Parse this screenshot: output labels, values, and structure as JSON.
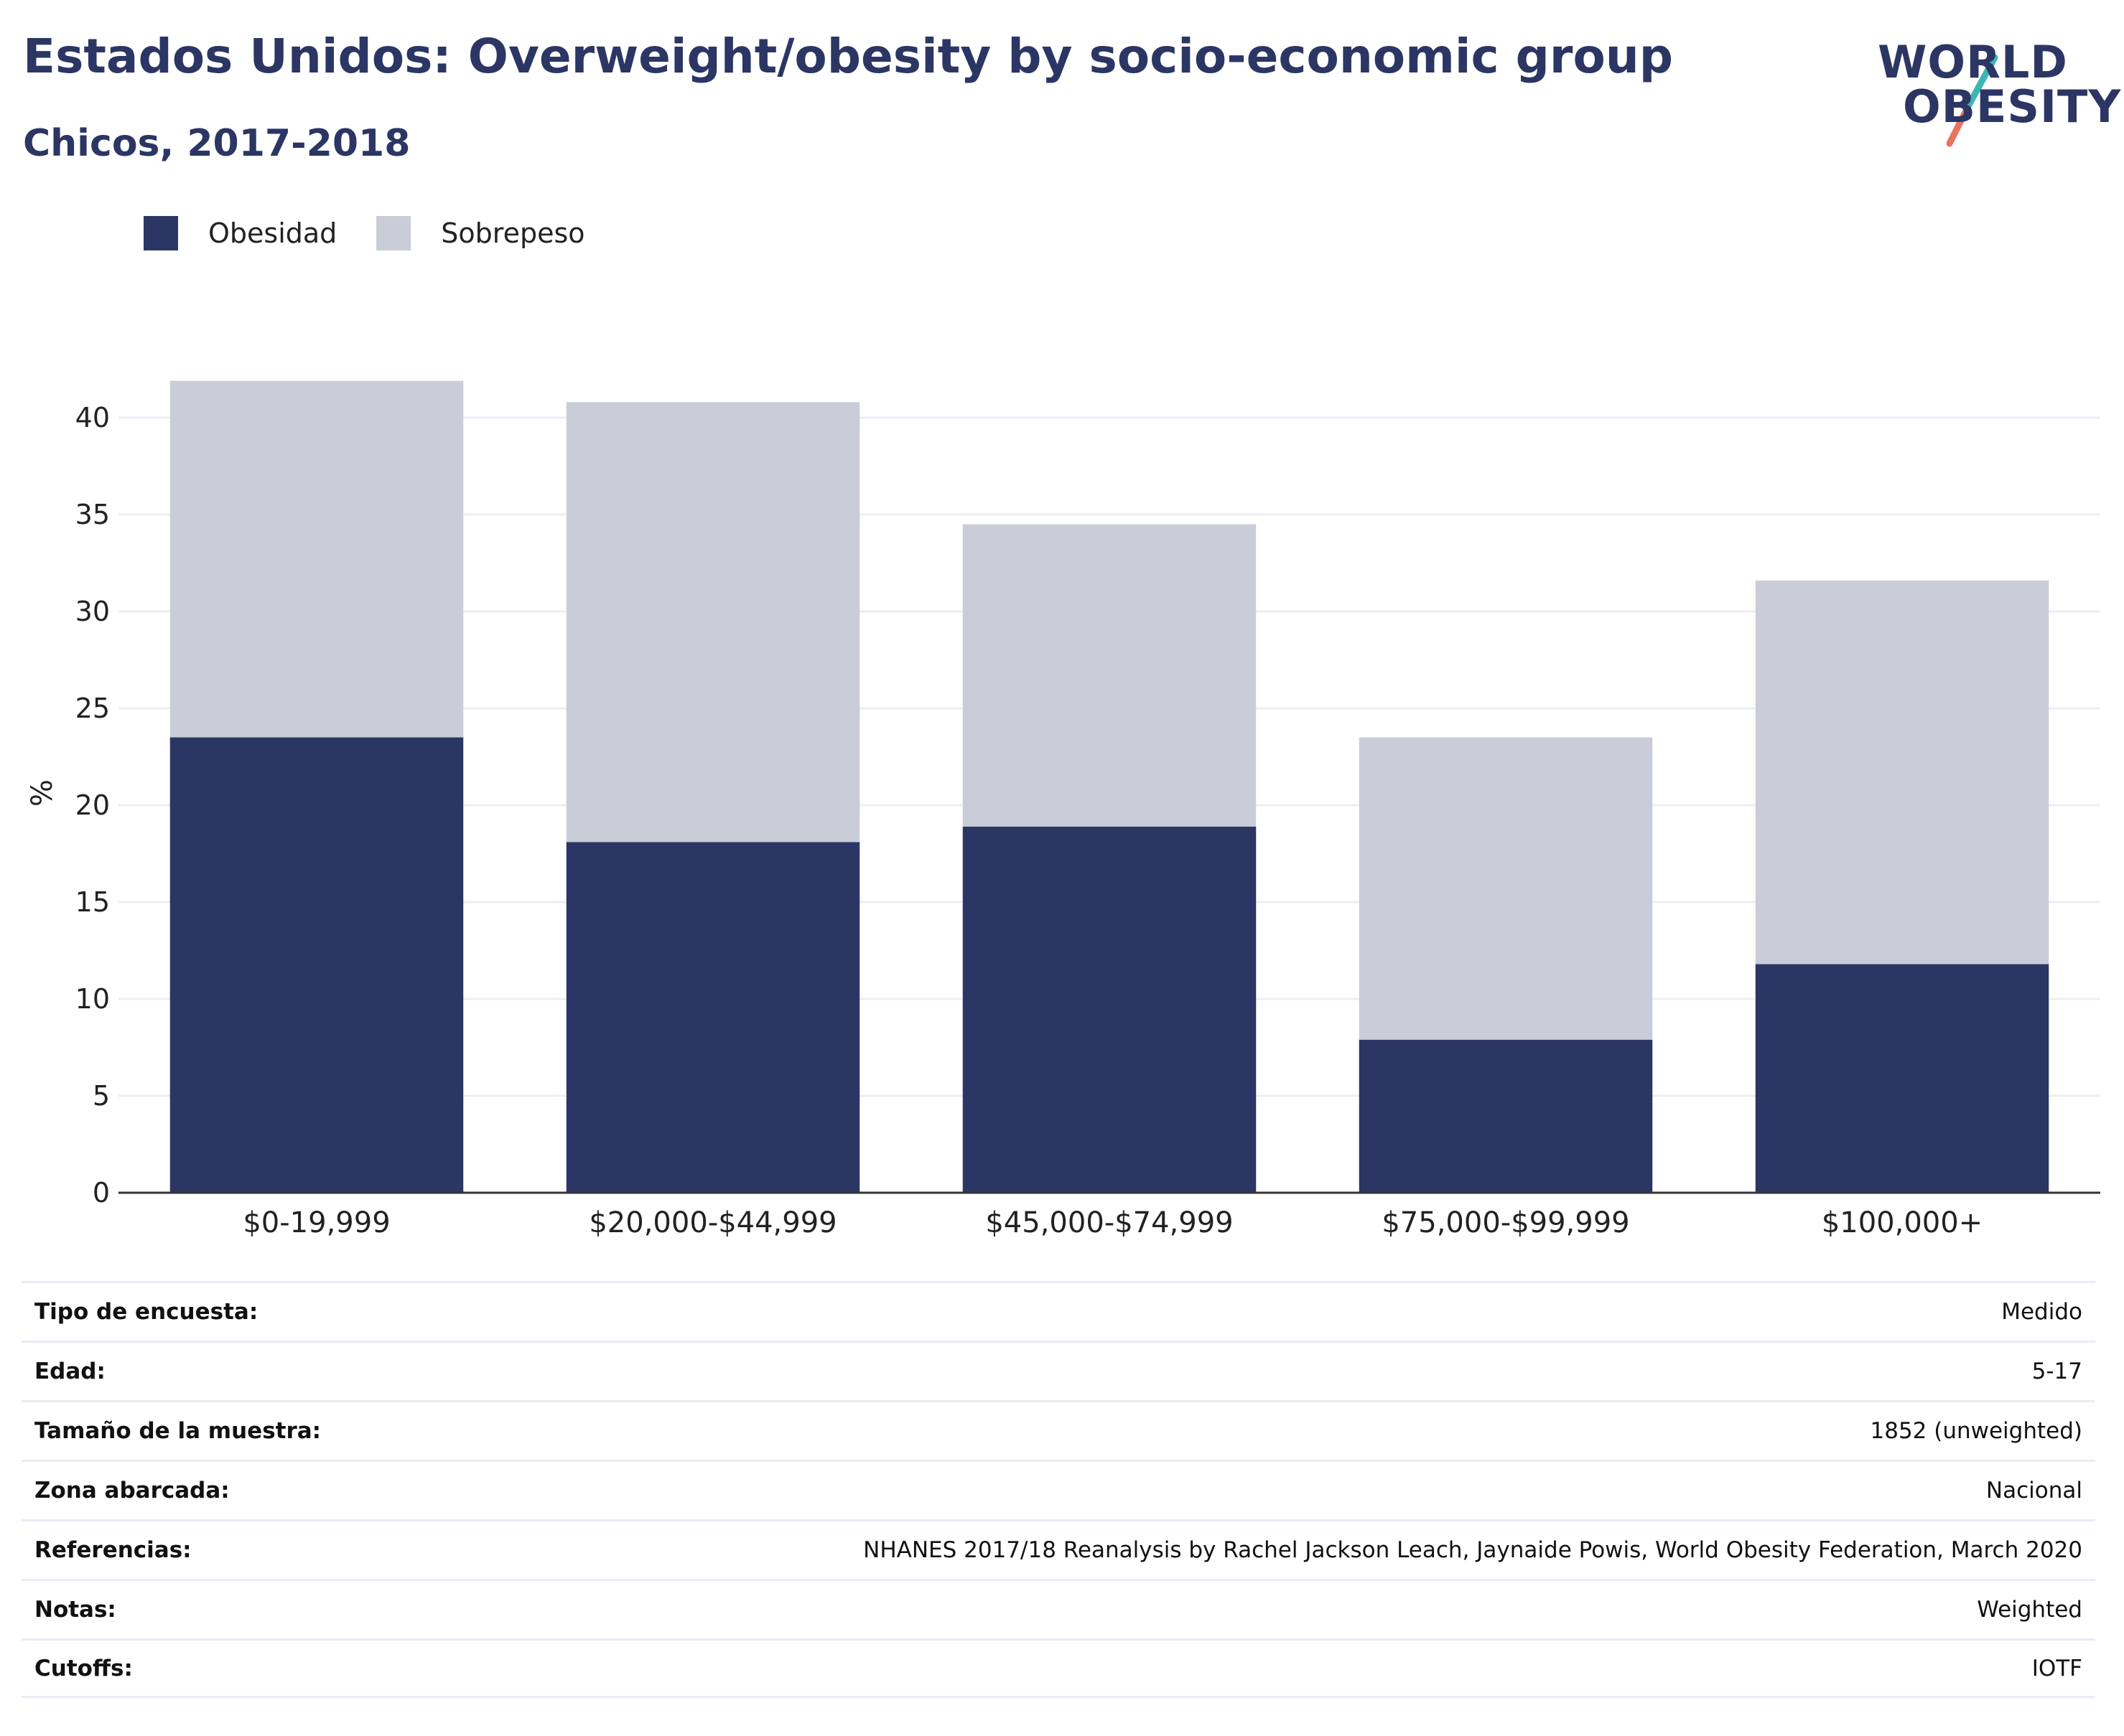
{
  "header": {
    "title": "Estados Unidos: Overweight/obesity by socio-economic group",
    "subtitle": "Chicos, 2017-2018"
  },
  "logo": {
    "line1": "WORLD",
    "line2": "OBESITY",
    "accent_teal": "#3ab7b5",
    "accent_coral": "#e8735f"
  },
  "legend": [
    {
      "label": "Obesidad",
      "color": "#2b3664"
    },
    {
      "label": "Sobrepeso",
      "color": "#cacdd8"
    }
  ],
  "chart_data": {
    "type": "bar",
    "stacked": true,
    "categories": [
      "$0-19,999",
      "$20,000-$44,999",
      "$45,000-$74,999",
      "$75,000-$99,999",
      "$100,000+"
    ],
    "series": [
      {
        "name": "Obesidad",
        "values": [
          23.5,
          18.1,
          18.9,
          7.9,
          11.8
        ],
        "color": "#2b3664"
      },
      {
        "name": "Sobrepeso",
        "values": [
          18.4,
          22.7,
          15.6,
          15.6,
          19.8
        ],
        "color": "#cacdd8"
      }
    ],
    "ylabel": "%",
    "ylim": [
      0,
      42
    ],
    "yticks": [
      0,
      5,
      10,
      15,
      20,
      25,
      30,
      35,
      40
    ],
    "grid": true,
    "legend_position": "top-left"
  },
  "info_table": [
    {
      "key": "Tipo de encuesta:",
      "value": "Medido"
    },
    {
      "key": "Edad:",
      "value": "5-17"
    },
    {
      "key": "Tamaño de la muestra:",
      "value": "1852 (unweighted)"
    },
    {
      "key": "Zona abarcada:",
      "value": "Nacional"
    },
    {
      "key": "Referencias:",
      "value": "NHANES 2017/18 Reanalysis by Rachel Jackson Leach, Jaynaide Powis, World Obesity Federation, March 2020"
    },
    {
      "key": "Notas:",
      "value": "Weighted"
    },
    {
      "key": "Cutoffs:",
      "value": "IOTF"
    }
  ]
}
